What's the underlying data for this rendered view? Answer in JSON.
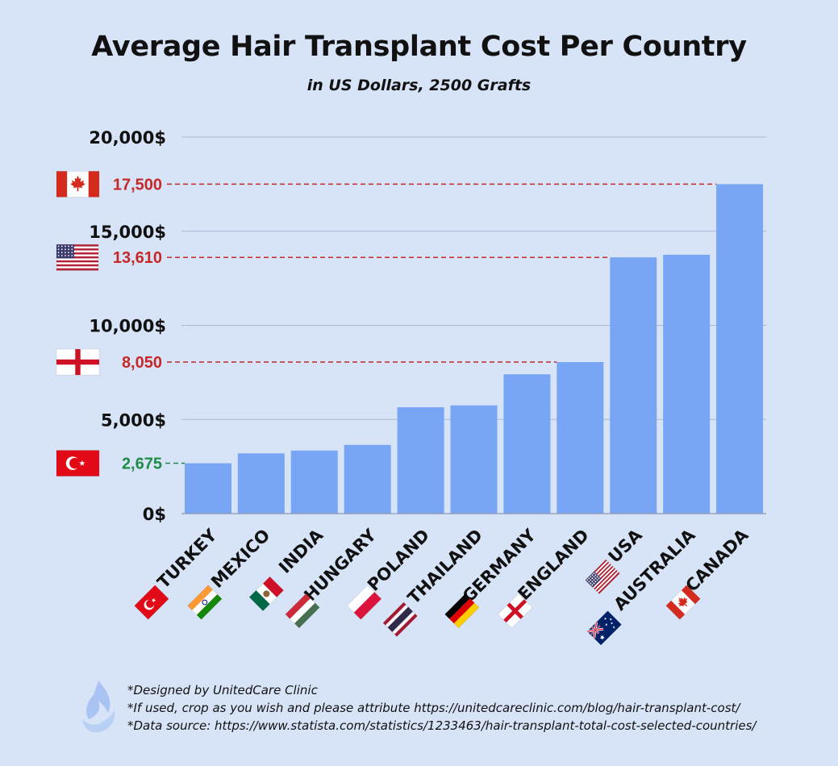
{
  "title": "Average Hair Transplant Cost Per Country",
  "subtitle": "in US Dollars, 2500 Grafts",
  "footer": {
    "line1": "*Designed by UnitedCare Clinic",
    "line2": "*If used, crop as you wish and please attribute https://unitedcareclinic.com/blog/hair-transplant-cost/",
    "line3": "*Data source: https://www.statista.com/statistics/1233463/hair-transplant-total-cost-selected-countries/"
  },
  "colors": {
    "background": "#d7e3f7",
    "bar": "#78a6f5",
    "callout_red": "#c62828",
    "callout_green": "#1e8c45",
    "gridline": "#a9b8d6"
  },
  "chart_data": {
    "type": "bar",
    "title": "Average Hair Transplant Cost Per Country",
    "subtitle": "in US Dollars, 2500 Grafts",
    "xlabel": "",
    "ylabel": "",
    "ylim": [
      0,
      20000
    ],
    "grid": true,
    "y_ticks": [
      {
        "value": 0,
        "label": "0$"
      },
      {
        "value": 5000,
        "label": "5,000$"
      },
      {
        "value": 10000,
        "label": "10,000$"
      },
      {
        "value": 15000,
        "label": "15,000$"
      },
      {
        "value": 20000,
        "label": "20,000$"
      }
    ],
    "categories": [
      "TURKEY",
      "MEXICO",
      "INDIA",
      "HUNGARY",
      "POLAND",
      "THAILAND",
      "GERMANY",
      "ENGLAND",
      "USA",
      "AUSTRALIA",
      "CANADA"
    ],
    "flags": [
      "turkey-flag",
      "india-flag",
      "mexico-flag",
      "hungary-flag",
      "poland-flag",
      "thailand-flag",
      "germany-flag",
      "england-flag",
      "usa-flag",
      "australia-flag",
      "canada-flag"
    ],
    "values": [
      2675,
      3200,
      3350,
      3650,
      5650,
      5750,
      7400,
      8050,
      13610,
      13750,
      17500
    ],
    "callouts": [
      {
        "value": 17500,
        "label": "17,500",
        "color": "red",
        "flag": "canada-flag",
        "category": "CANADA"
      },
      {
        "value": 13610,
        "label": "13,610",
        "color": "red",
        "flag": "usa-flag",
        "category": "USA"
      },
      {
        "value": 8050,
        "label": "8,050",
        "color": "red",
        "flag": "england-flag",
        "category": "ENGLAND"
      },
      {
        "value": 2675,
        "label": "2,675",
        "color": "green",
        "flag": "turkey-flag",
        "category": "TURKEY"
      }
    ]
  }
}
